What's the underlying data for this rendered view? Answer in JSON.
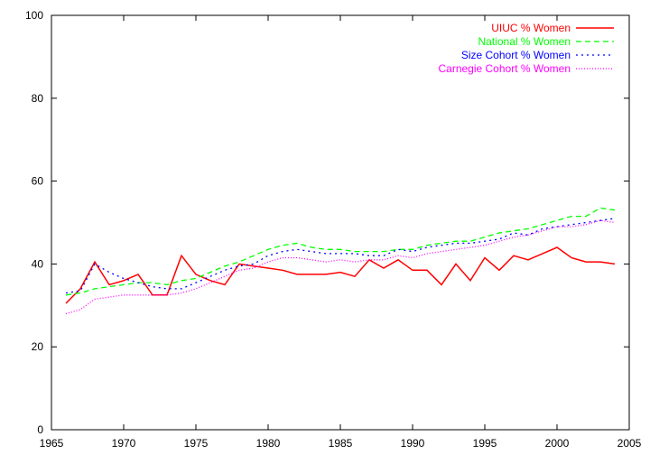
{
  "chart_data": {
    "type": "line",
    "title": "",
    "xlabel": "",
    "ylabel": "",
    "xlim": [
      1965,
      2005
    ],
    "ylim": [
      0,
      100
    ],
    "xticks": [
      1965,
      1970,
      1975,
      1980,
      1985,
      1990,
      1995,
      2000,
      2005
    ],
    "yticks": [
      0,
      20,
      40,
      60,
      80,
      100
    ],
    "grid": false,
    "legend_position": "top-right",
    "x": [
      1966,
      1967,
      1968,
      1969,
      1970,
      1971,
      1972,
      1973,
      1974,
      1975,
      1976,
      1977,
      1978,
      1979,
      1980,
      1981,
      1982,
      1983,
      1984,
      1985,
      1986,
      1987,
      1988,
      1989,
      1990,
      1991,
      1992,
      1993,
      1994,
      1995,
      1996,
      1997,
      1998,
      1999,
      2000,
      2001,
      2002,
      2003,
      2004
    ],
    "series": [
      {
        "name": "UIUC % Women",
        "color": "#ff0000",
        "dash": "",
        "values": [
          30.5,
          34.0,
          40.5,
          35.0,
          36.0,
          37.5,
          32.5,
          32.5,
          42.0,
          37.5,
          36.0,
          35.0,
          40.0,
          39.5,
          39.0,
          38.5,
          37.5,
          37.5,
          37.5,
          38.0,
          37.0,
          41.0,
          39.0,
          41.0,
          38.5,
          38.5,
          35.0,
          40.0,
          36.0,
          41.5,
          38.5,
          42.0,
          41.0,
          42.5,
          44.0,
          41.5,
          40.5,
          40.5,
          40.0
        ]
      },
      {
        "name": "National % Women",
        "color": "#00ff00",
        "dash": "6,4",
        "values": [
          32.5,
          33.0,
          34.0,
          34.5,
          35.0,
          35.5,
          35.5,
          35.0,
          36.0,
          36.5,
          38.0,
          39.5,
          40.5,
          42.0,
          43.5,
          44.5,
          45.0,
          44.0,
          43.5,
          43.5,
          43.0,
          43.0,
          43.0,
          43.5,
          43.5,
          44.5,
          45.0,
          45.5,
          45.5,
          46.5,
          47.5,
          48.0,
          48.5,
          49.5,
          50.5,
          51.5,
          51.5,
          53.5,
          53.0
        ]
      },
      {
        "name": "Size Cohort % Women",
        "color": "#0000ff",
        "dash": "2,4",
        "values": [
          33.0,
          33.5,
          40.0,
          38.0,
          36.5,
          35.5,
          34.5,
          34.0,
          34.0,
          35.5,
          37.0,
          38.5,
          39.5,
          40.0,
          42.0,
          43.0,
          43.5,
          43.0,
          42.5,
          42.5,
          42.5,
          42.0,
          42.0,
          43.5,
          43.0,
          44.0,
          44.5,
          45.0,
          45.0,
          45.5,
          46.0,
          47.5,
          47.0,
          48.5,
          49.0,
          49.5,
          50.0,
          50.5,
          51.0
        ]
      },
      {
        "name": "Carnegie Cohort % Women",
        "color": "#ff00ff",
        "dash": "1,2",
        "values": [
          28.0,
          29.0,
          31.5,
          32.0,
          32.5,
          32.5,
          32.5,
          32.5,
          33.0,
          34.0,
          35.5,
          37.0,
          38.5,
          39.0,
          40.5,
          41.5,
          41.5,
          41.0,
          40.5,
          41.0,
          40.5,
          41.0,
          41.0,
          42.0,
          41.5,
          42.5,
          43.0,
          43.5,
          44.0,
          44.5,
          45.5,
          46.5,
          47.0,
          48.0,
          49.0,
          49.0,
          49.5,
          50.5,
          50.0
        ]
      }
    ]
  }
}
